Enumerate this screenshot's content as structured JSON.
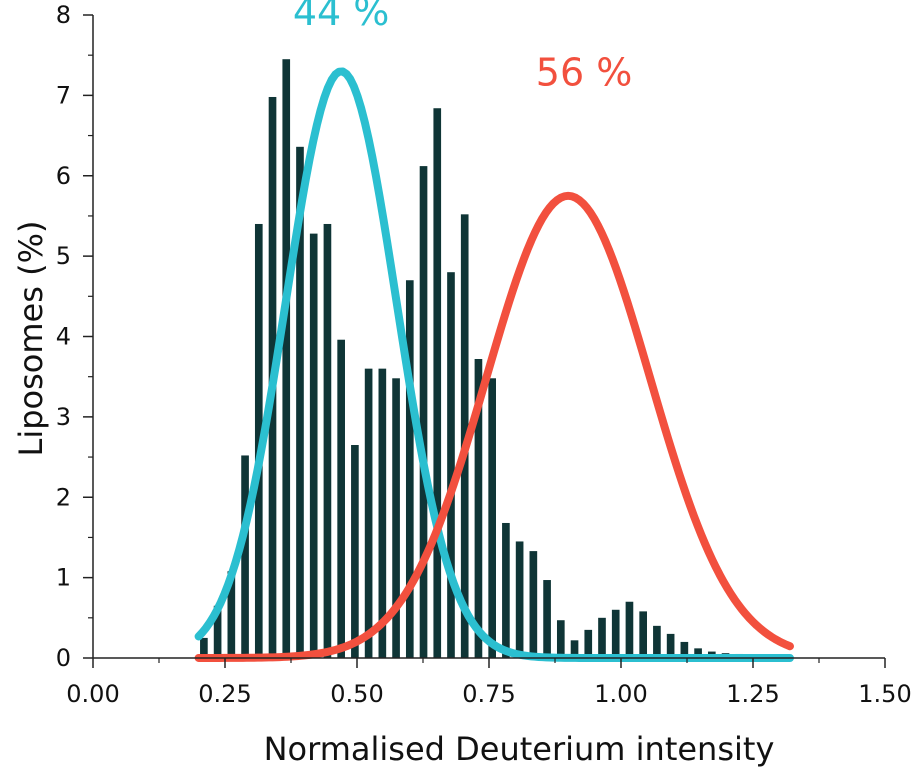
{
  "chart_data": {
    "type": "bar",
    "xlabel": "Normalised Deuterium intensity",
    "ylabel": "Liposomes (%)",
    "xlim": [
      0,
      1.5
    ],
    "ylim": [
      0,
      8
    ],
    "x_ticks": [
      "0.00",
      "0.25",
      "0.50",
      "0.75",
      "1.00",
      "1.25",
      "1.50"
    ],
    "y_ticks": [
      "0",
      "1",
      "2",
      "3",
      "4",
      "5",
      "6",
      "7",
      "8"
    ],
    "grid": false,
    "bar_color": "#0f3536",
    "bars": {
      "x": [
        0.21,
        0.236,
        0.262,
        0.288,
        0.314,
        0.34,
        0.366,
        0.392,
        0.418,
        0.444,
        0.47,
        0.496,
        0.522,
        0.548,
        0.574,
        0.6,
        0.626,
        0.652,
        0.678,
        0.704,
        0.73,
        0.756,
        0.782,
        0.808,
        0.834,
        0.86,
        0.886,
        0.912,
        0.938,
        0.964,
        0.99,
        1.016,
        1.042,
        1.068,
        1.094,
        1.12,
        1.146,
        1.172,
        1.198,
        1.224,
        1.25,
        1.276,
        1.302
      ],
      "values": [
        0.25,
        0.65,
        1.08,
        2.52,
        5.4,
        6.98,
        7.45,
        6.36,
        5.28,
        5.4,
        3.96,
        2.65,
        3.6,
        3.6,
        3.48,
        4.7,
        6.12,
        6.84,
        4.8,
        5.52,
        3.72,
        3.48,
        1.68,
        1.45,
        1.33,
        0.97,
        0.47,
        0.22,
        0.35,
        0.5,
        0.6,
        0.7,
        0.58,
        0.4,
        0.3,
        0.2,
        0.12,
        0.08,
        0.06,
        0.05,
        0.04,
        0.03,
        0.02
      ]
    },
    "series": [
      {
        "color": "#2bbfd0",
        "mean": 0.47,
        "sd": 0.105,
        "amplitude": 7.3,
        "x_range": [
          0.2,
          1.32
        ]
      },
      {
        "color": "#f2503e",
        "mean": 0.9,
        "sd": 0.155,
        "amplitude": 5.75,
        "x_range": [
          0.2,
          1.32
        ]
      }
    ],
    "annotations": [
      {
        "text": "44 %",
        "x": 0.47,
        "y": 8.05,
        "color": "#2bbfd0"
      },
      {
        "text": "56 %",
        "x": 0.93,
        "y": 7.3,
        "color": "#f2503e"
      }
    ]
  }
}
